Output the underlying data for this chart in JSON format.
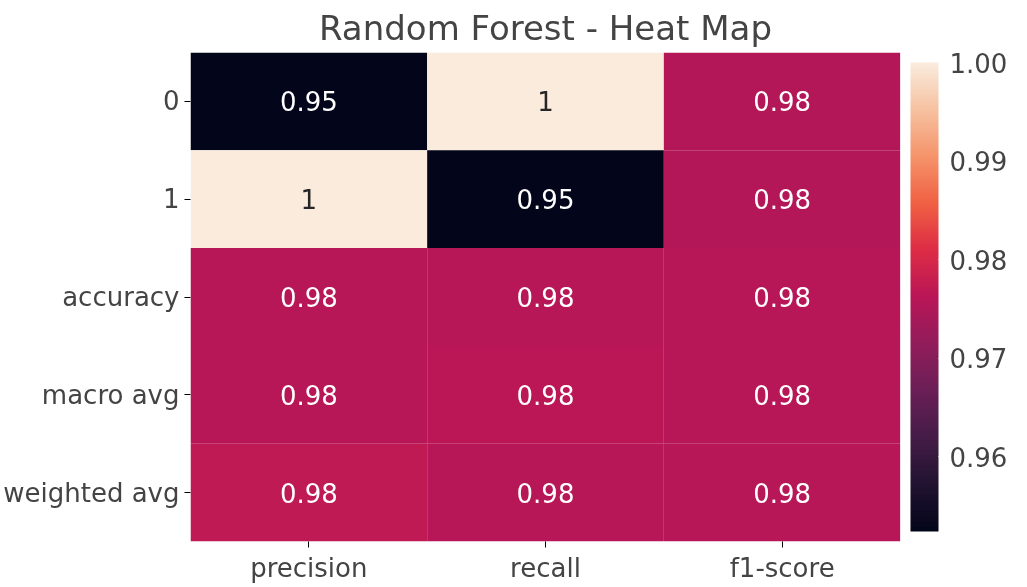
{
  "chart_data": {
    "type": "heatmap",
    "title": "Random Forest - Heat Map",
    "categories": [
      "precision",
      "recall",
      "f1-score"
    ],
    "y_categories": [
      "0",
      "1",
      "accuracy",
      "macro avg",
      "weighted avg"
    ],
    "cells": [
      [
        0.9524,
        1.0,
        0.9756
      ],
      [
        1.0,
        0.9524,
        0.9756
      ],
      [
        0.976,
        0.976,
        0.976
      ],
      [
        0.976,
        0.9765,
        0.976
      ],
      [
        0.977,
        0.976,
        0.976
      ]
    ],
    "cell_labels": [
      [
        "0.95",
        "1",
        "0.98"
      ],
      [
        "1",
        "0.95",
        "0.98"
      ],
      [
        "0.98",
        "0.98",
        "0.98"
      ],
      [
        "0.98",
        "0.98",
        "0.98"
      ],
      [
        "0.98",
        "0.98",
        "0.98"
      ]
    ],
    "colors": [
      "#03051a",
      "#221331",
      "#451c47",
      "#6a1f56",
      "#921c5b",
      "#b91657",
      "#dd2c45",
      "#f06043",
      "#f5936a",
      "#f6c1a0",
      "#faebdd"
    ],
    "clim": [
      0.9524,
      1.0
    ],
    "cticks": [
      0.96,
      0.97,
      0.98,
      0.99,
      {
        "value": 1.0,
        "label": "1.00"
      }
    ],
    "grid": false
  }
}
